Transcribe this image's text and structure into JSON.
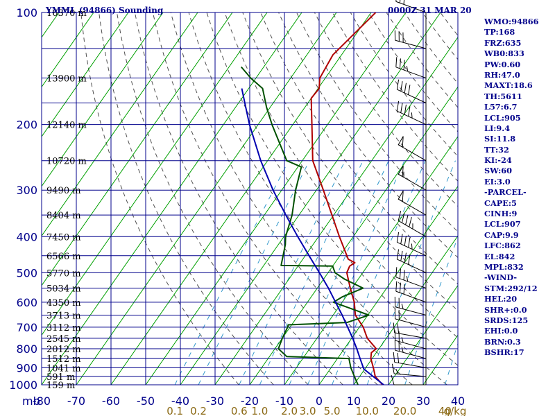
{
  "title_left": "YMML (94866) Sounding",
  "title_right": "0000Z 31 MAR 20",
  "indices": [
    "WMO:94866",
    "TP:168",
    "FRZ:635",
    "WB0:833",
    "PW:0.60",
    "RH:47.0",
    "MAXT:18.6",
    "TH:5611",
    "L57:6.7",
    "LCL:905",
    "LI:9.4",
    "SI:11.8",
    "TT:32",
    "KI:-24",
    "SW:60",
    "EI:3.0",
    "-PARCEL-",
    "CAPE:5",
    "CINH:9",
    "LCL:907",
    "CAP:9.9",
    "LFC:862",
    "EL:842",
    "MPL:832",
    "-WIND-",
    "STM:292/12",
    "HEL:20",
    "SHR+:0.0",
    "SRDS:125",
    "EHI:0.0",
    "BRN:0.3",
    "BSHR:17"
  ],
  "colors": {
    "frame": "#00008b",
    "isotherms": "#00a000",
    "dry_adiabats": "#505050",
    "mixing_ratio": "#3399cc",
    "temperature": "#b00000",
    "dewpoint": "#005000",
    "parcel": "#0000b0",
    "wind_barbs": "#000000"
  },
  "chart_data": {
    "type": "line",
    "diagram": "skew-T log-P",
    "x_axis": {
      "label": "",
      "unit": "°C",
      "range": [
        -80,
        40
      ],
      "ticks": [
        -80,
        -70,
        -60,
        -50,
        -40,
        -30,
        -20,
        -10,
        0,
        10,
        20,
        30,
        40
      ],
      "tick_labels": [
        "-80",
        "-70",
        "-60",
        "-50",
        "-40",
        "-30",
        "-20",
        "-10",
        "0",
        "10",
        "20",
        "30",
        "40"
      ]
    },
    "y_axis": {
      "label": "",
      "unit": "mb",
      "scale": "log",
      "range": [
        1000,
        100
      ],
      "ticks": [
        100,
        200,
        300,
        400,
        500,
        600,
        700,
        800,
        900,
        1000
      ],
      "tick_labels": [
        "100",
        "200",
        "300",
        "400",
        "500",
        "600",
        "700",
        "800",
        "900",
        "1000"
      ]
    },
    "height_labels": [
      {
        "p": 1000,
        "text": "159 m"
      },
      {
        "p": 950,
        "text": "591 m"
      },
      {
        "p": 900,
        "text": "1041 m"
      },
      {
        "p": 850,
        "text": "1512 m"
      },
      {
        "p": 800,
        "text": "2012 m"
      },
      {
        "p": 750,
        "text": "2545 m"
      },
      {
        "p": 700,
        "text": "3112 m"
      },
      {
        "p": 650,
        "text": "3713 m"
      },
      {
        "p": 600,
        "text": "4350 m"
      },
      {
        "p": 550,
        "text": "5034 m"
      },
      {
        "p": 500,
        "text": "5770 m"
      },
      {
        "p": 450,
        "text": "6566 m"
      },
      {
        "p": 400,
        "text": "7450 m"
      },
      {
        "p": 350,
        "text": "8404 m"
      },
      {
        "p": 300,
        "text": "9490 m"
      },
      {
        "p": 250,
        "text": "10720 m"
      },
      {
        "p": 200,
        "text": "12140 m"
      },
      {
        "p": 150,
        "text": "13900 m"
      },
      {
        "p": 100,
        "text": "16370 m"
      }
    ],
    "mixing_ratio_labels": [
      "0.1",
      "0.2",
      "0.6",
      "1.0",
      "2.0",
      "3.0",
      "5.0",
      "10.0",
      "20.0",
      "40",
      "g/kg"
    ],
    "mixing_ratio_values": [
      0.1,
      0.2,
      0.6,
      1.0,
      2.0,
      3.0,
      5.0,
      10.0,
      20.0,
      40
    ],
    "grid": true,
    "series": [
      {
        "key": "temperature",
        "points": [
          [
            1000,
            18.3
          ],
          [
            950,
            14.5
          ],
          [
            900,
            12.2
          ],
          [
            850,
            9.6
          ],
          [
            820,
            8.6
          ],
          [
            800,
            9.2
          ],
          [
            750,
            4.5
          ],
          [
            700,
            1.1
          ],
          [
            650,
            -3.6
          ],
          [
            600,
            -6.5
          ],
          [
            550,
            -10.5
          ],
          [
            500,
            -14.6
          ],
          [
            480,
            -15.1
          ],
          [
            470,
            -14.3
          ],
          [
            460,
            -16.9
          ],
          [
            400,
            -24.0
          ],
          [
            350,
            -30.5
          ],
          [
            300,
            -38.0
          ],
          [
            250,
            -47.0
          ],
          [
            200,
            -54.5
          ],
          [
            170,
            -60.0
          ],
          [
            160,
            -59.7
          ],
          [
            150,
            -61.6
          ],
          [
            130,
            -62.5
          ],
          [
            100,
            -58.7
          ]
        ]
      },
      {
        "key": "dewpoint",
        "points": [
          [
            1000,
            11.2
          ],
          [
            950,
            8.5
          ],
          [
            900,
            5.7
          ],
          [
            850,
            3.3
          ],
          [
            840,
            -15.0
          ],
          [
            800,
            -19.0
          ],
          [
            750,
            -20.0
          ],
          [
            700,
            -20.7
          ],
          [
            690,
            -21.0
          ],
          [
            680,
            -4.5
          ],
          [
            650,
            0.3
          ],
          [
            600,
            -12.5
          ],
          [
            580,
            -11.0
          ],
          [
            550,
            -6.8
          ],
          [
            520,
            -14.0
          ],
          [
            500,
            -18.0
          ],
          [
            480,
            -20.0
          ],
          [
            478,
            -35.0
          ],
          [
            420,
            -38.0
          ],
          [
            400,
            -39.5
          ],
          [
            350,
            -42.0
          ],
          [
            300,
            -46.0
          ],
          [
            260,
            -49.0
          ],
          [
            250,
            -54.5
          ],
          [
            200,
            -66.0
          ],
          [
            180,
            -71.0
          ],
          [
            160,
            -76.0
          ],
          [
            150,
            -81.5
          ],
          [
            140,
            -86.5
          ]
        ]
      },
      {
        "key": "parcel",
        "points": [
          [
            1000,
            18.6
          ],
          [
            950,
            13.9
          ],
          [
            907,
            9.7
          ],
          [
            850,
            6.5
          ],
          [
            800,
            3.6
          ],
          [
            750,
            0.3
          ],
          [
            700,
            -3.4
          ],
          [
            650,
            -7.4
          ],
          [
            600,
            -11.9
          ],
          [
            550,
            -16.8
          ],
          [
            500,
            -22.5
          ],
          [
            450,
            -28.9
          ],
          [
            400,
            -36.0
          ],
          [
            350,
            -43.8
          ],
          [
            300,
            -52.5
          ],
          [
            250,
            -62.0
          ],
          [
            200,
            -72.5
          ],
          [
            180,
            -77.0
          ],
          [
            160,
            -82.0
          ]
        ]
      }
    ],
    "wind_barbs": [
      {
        "p": 1000,
        "dir": 270,
        "spd": 10
      },
      {
        "p": 950,
        "dir": 275,
        "spd": 15
      },
      {
        "p": 900,
        "dir": 280,
        "spd": 20
      },
      {
        "p": 850,
        "dir": 285,
        "spd": 25
      },
      {
        "p": 800,
        "dir": 285,
        "spd": 25
      },
      {
        "p": 750,
        "dir": 280,
        "spd": 20
      },
      {
        "p": 700,
        "dir": 285,
        "spd": 20
      },
      {
        "p": 650,
        "dir": 285,
        "spd": 25
      },
      {
        "p": 600,
        "dir": 290,
        "spd": 30
      },
      {
        "p": 550,
        "dir": 290,
        "spd": 35
      },
      {
        "p": 500,
        "dir": 295,
        "spd": 40
      },
      {
        "p": 450,
        "dir": 295,
        "spd": 45
      },
      {
        "p": 400,
        "dir": 300,
        "spd": 45
      },
      {
        "p": 350,
        "dir": 300,
        "spd": 50
      },
      {
        "p": 300,
        "dir": 300,
        "spd": 55
      },
      {
        "p": 250,
        "dir": 300,
        "spd": 50
      },
      {
        "p": 200,
        "dir": 295,
        "spd": 45
      },
      {
        "p": 175,
        "dir": 295,
        "spd": 40
      },
      {
        "p": 150,
        "dir": 290,
        "spd": 35
      },
      {
        "p": 125,
        "dir": 285,
        "spd": 30
      },
      {
        "p": 100,
        "dir": 290,
        "spd": 30
      }
    ]
  }
}
